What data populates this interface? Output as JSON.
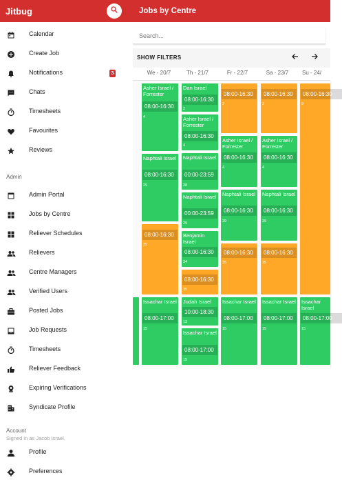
{
  "app": {
    "title": "Jitbug"
  },
  "sidebar": {
    "items": [
      {
        "label": "Calendar",
        "icon": "calendar-icon"
      },
      {
        "label": "Create Job",
        "icon": "add-circle-icon"
      },
      {
        "label": "Notifications",
        "icon": "bell-icon",
        "badge": "3"
      },
      {
        "label": "Chats",
        "icon": "chat-icon"
      },
      {
        "label": "Timesheets",
        "icon": "timer-icon"
      },
      {
        "label": "Favourites",
        "icon": "heart-icon"
      },
      {
        "label": "Reviews",
        "icon": "star-icon"
      }
    ],
    "admin_label": "Admin",
    "admin_items": [
      {
        "label": "Admin Portal",
        "icon": "portal-icon"
      },
      {
        "label": "Jobs by Centre",
        "icon": "grid-icon"
      },
      {
        "label": "Reliever Schedules",
        "icon": "grid-icon"
      },
      {
        "label": "Relievers",
        "icon": "people-icon"
      },
      {
        "label": "Centre Managers",
        "icon": "people-icon"
      },
      {
        "label": "Verified Users",
        "icon": "people-icon"
      },
      {
        "label": "Posted Jobs",
        "icon": "briefcase-icon"
      },
      {
        "label": "Job Requests",
        "icon": "inbox-icon"
      },
      {
        "label": "Timesheets",
        "icon": "timer-icon"
      },
      {
        "label": "Reliever Feedback",
        "icon": "thumbs-up-icon"
      },
      {
        "label": "Expiring Verifications",
        "icon": "verified-icon"
      },
      {
        "label": "Syndicate Profile",
        "icon": "building-icon"
      }
    ],
    "account_label": "Account",
    "signed_in": "Signed in as Jacob Israel.",
    "account_items": [
      {
        "label": "Profile",
        "icon": "person-icon"
      },
      {
        "label": "Preferences",
        "icon": "settings-icon"
      }
    ]
  },
  "main": {
    "title": "Jobs by Centre",
    "search_placeholder": "Search...",
    "show_filters": "SHOW FILTERS",
    "days": [
      "We - 20/7",
      "Th - 21/7",
      "Fr - 22/7",
      "Sa - 23/7",
      "Su - 24/"
    ],
    "shifts": [
      {
        "name": "Asher Israel / Forrester",
        "time": "08:00-16:30",
        "count": "4",
        "color": "green"
      },
      {
        "name": "Naphtali Israel",
        "time": "08:00-16:30",
        "count": "29",
        "color": "green"
      },
      {
        "name": "",
        "time": "08:00-16:30",
        "count": "35",
        "color": "orange"
      },
      {
        "name": "Dan Israel",
        "time": "08:00-16:30",
        "count": "2",
        "color": "green"
      },
      {
        "name": "Asher Israel / Forrester",
        "time": "08:00-16:30",
        "count": "4",
        "color": "green"
      },
      {
        "name": "Naphtali Israel",
        "time": "00:00-23:59",
        "count": "28",
        "color": "green"
      },
      {
        "name": "Naphtali Israel",
        "time": "00:00-23:59",
        "count": "29",
        "color": "green"
      },
      {
        "name": "Benjamin Israel",
        "time": "08:00-16:30",
        "count": "34",
        "color": "green"
      },
      {
        "name": "",
        "time": "08:00-16:30",
        "count": "35",
        "color": "orange"
      },
      {
        "name": "",
        "time": "08:00-16:30",
        "count": "2",
        "color": "orange"
      },
      {
        "name": "Asher Israel / Forrester",
        "time": "08:00-16:30",
        "count": "4",
        "color": "green"
      },
      {
        "name": "Naphtali Israel",
        "time": "08:00-16:30",
        "count": "29",
        "color": "green"
      },
      {
        "name": "",
        "time": "08:00-16:30",
        "count": "35",
        "color": "orange"
      },
      {
        "name": "",
        "time": "08:00-16:30",
        "count": "2",
        "color": "orange"
      },
      {
        "name": "Asher Israel / Forrester",
        "time": "08:00-16:30",
        "count": "4",
        "color": "green"
      },
      {
        "name": "Naphtali Israel",
        "time": "08:00-16:30",
        "count": "29",
        "color": "green"
      },
      {
        "name": "",
        "time": "08:00-16:30",
        "count": "35",
        "color": "orange"
      },
      {
        "name": "",
        "time": "08:00-16:30",
        "count": "9",
        "color": "orange"
      },
      {
        "name": "Issachar Israel",
        "time": "08:00-17:00",
        "count": "15",
        "color": "green"
      },
      {
        "name": "Judah Israel",
        "time": "10:00-18:30",
        "count": "13",
        "color": "green"
      },
      {
        "name": "Issachar Israel",
        "time": "08:00-17:00",
        "count": "15",
        "color": "green"
      },
      {
        "name": "Issachar Israel",
        "time": "08:00-17:00",
        "count": "15",
        "color": "green"
      },
      {
        "name": "Issachar Israel",
        "time": "08:00-17:00",
        "count": "15",
        "color": "green"
      },
      {
        "name": "Issachar Israel",
        "time": "08:00-17:00",
        "count": "15",
        "color": "green"
      }
    ]
  },
  "colors": {
    "brand": "#d32f2f",
    "green": "#2ecc63",
    "orange": "#ffa726"
  }
}
